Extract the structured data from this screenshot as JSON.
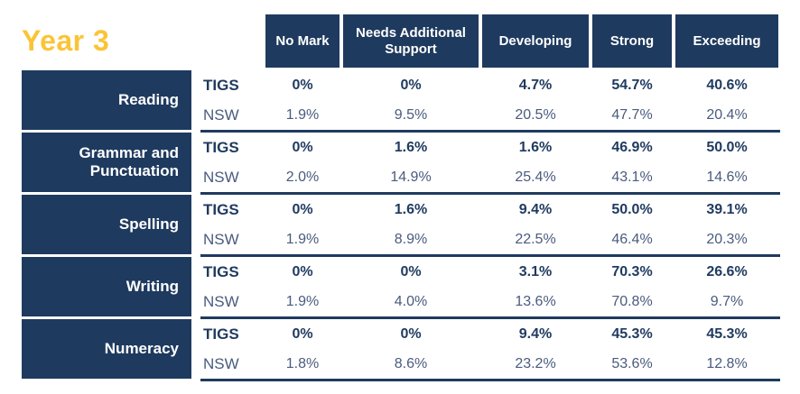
{
  "title": "Year 3",
  "colors": {
    "navy": "#1f3a5f",
    "yellow": "#fbc437",
    "nsw_text": "#4a5b7d",
    "background": "#ffffff"
  },
  "chart_data": {
    "type": "table",
    "title": "Year 3",
    "columns": [
      "No Mark",
      "Needs Additional Support",
      "Developing",
      "Strong",
      "Exceeding"
    ],
    "row_headers": {
      "tigs": "TIGS",
      "nsw": "NSW"
    },
    "rows": [
      {
        "subject": "Reading",
        "tigs": [
          "0%",
          "0%",
          "4.7%",
          "54.7%",
          "40.6%"
        ],
        "nsw": [
          "1.9%",
          "9.5%",
          "20.5%",
          "47.7%",
          "20.4%"
        ]
      },
      {
        "subject": "Grammar and Punctuation",
        "tigs": [
          "0%",
          "1.6%",
          "1.6%",
          "46.9%",
          "50.0%"
        ],
        "nsw": [
          "2.0%",
          "14.9%",
          "25.4%",
          "43.1%",
          "14.6%"
        ]
      },
      {
        "subject": "Spelling",
        "tigs": [
          "0%",
          "1.6%",
          "9.4%",
          "50.0%",
          "39.1%"
        ],
        "nsw": [
          "1.9%",
          "8.9%",
          "22.5%",
          "46.4%",
          "20.3%"
        ]
      },
      {
        "subject": "Writing",
        "tigs": [
          "0%",
          "0%",
          "3.1%",
          "70.3%",
          "26.6%"
        ],
        "nsw": [
          "1.9%",
          "4.0%",
          "13.6%",
          "70.8%",
          "9.7%"
        ]
      },
      {
        "subject": "Numeracy",
        "tigs": [
          "0%",
          "0%",
          "9.4%",
          "45.3%",
          "45.3%"
        ],
        "nsw": [
          "1.8%",
          "8.6%",
          "23.2%",
          "53.6%",
          "12.8%"
        ]
      }
    ]
  }
}
